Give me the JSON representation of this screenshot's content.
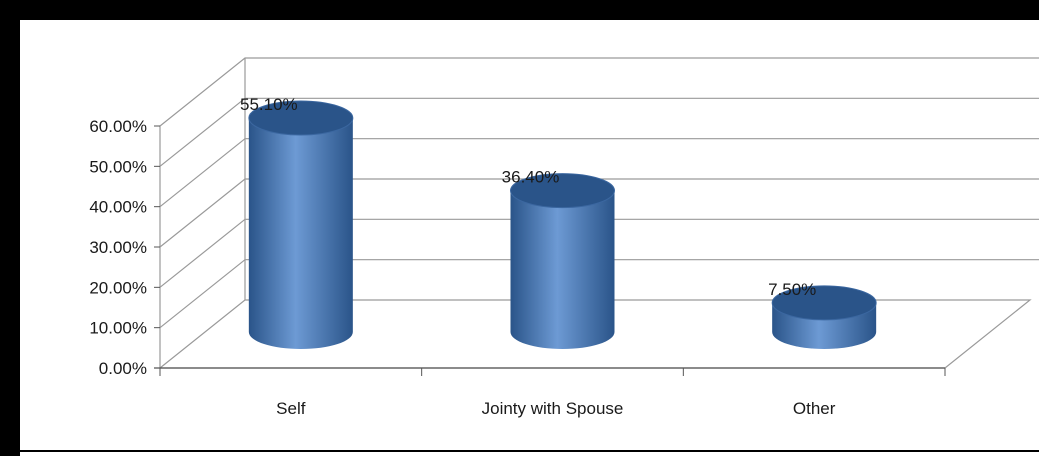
{
  "chart_data": {
    "type": "bar",
    "style": "3d-cylinder",
    "categories": [
      "Self",
      "Jointy with Spouse",
      "Other"
    ],
    "values": [
      55.1,
      36.4,
      7.5
    ],
    "data_labels": [
      "55.10%",
      "36.40%",
      "7.50%"
    ],
    "ylim": [
      0,
      60
    ],
    "yticks": [
      0,
      10,
      20,
      30,
      40,
      50,
      60
    ],
    "ytick_labels": [
      "0.00%",
      "10.00%",
      "20.00%",
      "30.00%",
      "40.00%",
      "50.00%",
      "60.00%"
    ],
    "grid": true,
    "legend": false,
    "title": "",
    "xlabel": "",
    "ylabel": "",
    "colors": {
      "bar": "#4f81bd",
      "bar_dark": "#2a5489",
      "bar_light": "#6d9ad4",
      "grid": "#9a9a9a",
      "frame": "#000000"
    }
  }
}
